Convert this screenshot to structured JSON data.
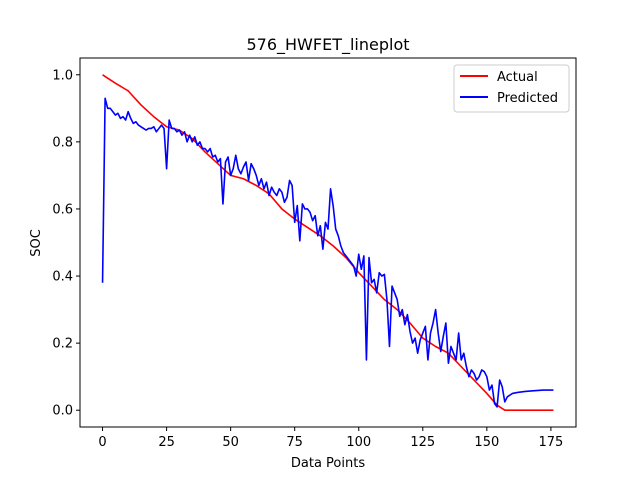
{
  "chart_data": {
    "type": "line",
    "title": "576_HWFET_lineplot",
    "xlabel": "Data Points",
    "ylabel": "SOC",
    "xlim": [
      -8.8,
      184.8
    ],
    "ylim": [
      -0.05,
      1.05
    ],
    "x_ticks": [
      0,
      25,
      50,
      75,
      100,
      125,
      150,
      175
    ],
    "y_ticks": [
      0.0,
      0.2,
      0.4,
      0.6,
      0.8,
      1.0
    ],
    "x_tick_labels": [
      "0",
      "25",
      "50",
      "75",
      "100",
      "125",
      "150",
      "175"
    ],
    "y_tick_labels": [
      "0.0",
      "0.2",
      "0.4",
      "0.6",
      "0.8",
      "1.0"
    ],
    "grid": false,
    "legend_position": "top-right",
    "series": [
      {
        "name": "Actual",
        "color": "#ff0000",
        "points": [
          [
            0,
            1.0
          ],
          [
            5,
            0.975
          ],
          [
            10,
            0.952
          ],
          [
            15,
            0.91
          ],
          [
            20,
            0.875
          ],
          [
            25,
            0.845
          ],
          [
            30,
            0.835
          ],
          [
            35,
            0.81
          ],
          [
            40,
            0.77
          ],
          [
            45,
            0.735
          ],
          [
            50,
            0.7
          ],
          [
            55,
            0.69
          ],
          [
            60,
            0.67
          ],
          [
            65,
            0.645
          ],
          [
            70,
            0.6
          ],
          [
            75,
            0.57
          ],
          [
            80,
            0.545
          ],
          [
            85,
            0.52
          ],
          [
            90,
            0.49
          ],
          [
            95,
            0.455
          ],
          [
            100,
            0.41
          ],
          [
            105,
            0.37
          ],
          [
            110,
            0.33
          ],
          [
            115,
            0.3
          ],
          [
            120,
            0.26
          ],
          [
            125,
            0.215
          ],
          [
            130,
            0.19
          ],
          [
            135,
            0.17
          ],
          [
            140,
            0.13
          ],
          [
            145,
            0.09
          ],
          [
            150,
            0.05
          ],
          [
            154,
            0.015
          ],
          [
            157,
            0.0
          ],
          [
            165,
            0.0
          ],
          [
            176,
            0.0
          ]
        ]
      },
      {
        "name": "Predicted",
        "color": "#0000ff",
        "points": [
          [
            0,
            0.38
          ],
          [
            1,
            0.93
          ],
          [
            2,
            0.9
          ],
          [
            3,
            0.9
          ],
          [
            4,
            0.89
          ],
          [
            5,
            0.88
          ],
          [
            6,
            0.885
          ],
          [
            7,
            0.87
          ],
          [
            8,
            0.875
          ],
          [
            9,
            0.865
          ],
          [
            10,
            0.89
          ],
          [
            11,
            0.87
          ],
          [
            12,
            0.855
          ],
          [
            13,
            0.86
          ],
          [
            14,
            0.85
          ],
          [
            15,
            0.845
          ],
          [
            16,
            0.84
          ],
          [
            17,
            0.835
          ],
          [
            18,
            0.84
          ],
          [
            19,
            0.84
          ],
          [
            20,
            0.845
          ],
          [
            21,
            0.83
          ],
          [
            22,
            0.84
          ],
          [
            23,
            0.85
          ],
          [
            24,
            0.84
          ],
          [
            25,
            0.72
          ],
          [
            26,
            0.865
          ],
          [
            27,
            0.84
          ],
          [
            28,
            0.84
          ],
          [
            29,
            0.83
          ],
          [
            30,
            0.835
          ],
          [
            31,
            0.82
          ],
          [
            32,
            0.83
          ],
          [
            33,
            0.8
          ],
          [
            34,
            0.82
          ],
          [
            35,
            0.8
          ],
          [
            36,
            0.815
          ],
          [
            37,
            0.79
          ],
          [
            38,
            0.8
          ],
          [
            39,
            0.78
          ],
          [
            40,
            0.78
          ],
          [
            41,
            0.77
          ],
          [
            42,
            0.78
          ],
          [
            43,
            0.755
          ],
          [
            44,
            0.76
          ],
          [
            45,
            0.74
          ],
          [
            46,
            0.75
          ],
          [
            47,
            0.615
          ],
          [
            48,
            0.74
          ],
          [
            49,
            0.755
          ],
          [
            50,
            0.7
          ],
          [
            51,
            0.72
          ],
          [
            52,
            0.76
          ],
          [
            53,
            0.72
          ],
          [
            54,
            0.705
          ],
          [
            55,
            0.725
          ],
          [
            56,
            0.74
          ],
          [
            57,
            0.685
          ],
          [
            58,
            0.735
          ],
          [
            59,
            0.72
          ],
          [
            60,
            0.7
          ],
          [
            61,
            0.67
          ],
          [
            62,
            0.69
          ],
          [
            63,
            0.66
          ],
          [
            64,
            0.68
          ],
          [
            65,
            0.64
          ],
          [
            66,
            0.665
          ],
          [
            67,
            0.65
          ],
          [
            68,
            0.64
          ],
          [
            69,
            0.66
          ],
          [
            70,
            0.65
          ],
          [
            71,
            0.62
          ],
          [
            72,
            0.635
          ],
          [
            73,
            0.685
          ],
          [
            74,
            0.67
          ],
          [
            75,
            0.56
          ],
          [
            76,
            0.61
          ],
          [
            77,
            0.505
          ],
          [
            78,
            0.615
          ],
          [
            79,
            0.6
          ],
          [
            80,
            0.6
          ],
          [
            81,
            0.59
          ],
          [
            82,
            0.565
          ],
          [
            83,
            0.58
          ],
          [
            84,
            0.52
          ],
          [
            85,
            0.55
          ],
          [
            86,
            0.48
          ],
          [
            87,
            0.56
          ],
          [
            88,
            0.54
          ],
          [
            89,
            0.66
          ],
          [
            90,
            0.61
          ],
          [
            91,
            0.54
          ],
          [
            92,
            0.52
          ],
          [
            93,
            0.49
          ],
          [
            94,
            0.47
          ],
          [
            95,
            0.46
          ],
          [
            96,
            0.45
          ],
          [
            97,
            0.44
          ],
          [
            98,
            0.43
          ],
          [
            99,
            0.4
          ],
          [
            100,
            0.465
          ],
          [
            101,
            0.42
          ],
          [
            102,
            0.46
          ],
          [
            103,
            0.15
          ],
          [
            104,
            0.455
          ],
          [
            105,
            0.38
          ],
          [
            106,
            0.39
          ],
          [
            107,
            0.35
          ],
          [
            108,
            0.41
          ],
          [
            109,
            0.4
          ],
          [
            110,
            0.405
          ],
          [
            111,
            0.33
          ],
          [
            112,
            0.19
          ],
          [
            113,
            0.37
          ],
          [
            114,
            0.35
          ],
          [
            115,
            0.33
          ],
          [
            116,
            0.28
          ],
          [
            117,
            0.3
          ],
          [
            118,
            0.255
          ],
          [
            119,
            0.285
          ],
          [
            120,
            0.235
          ],
          [
            121,
            0.2
          ],
          [
            122,
            0.215
          ],
          [
            123,
            0.17
          ],
          [
            124,
            0.21
          ],
          [
            125,
            0.23
          ],
          [
            126,
            0.25
          ],
          [
            127,
            0.15
          ],
          [
            128,
            0.23
          ],
          [
            129,
            0.26
          ],
          [
            130,
            0.3
          ],
          [
            131,
            0.23
          ],
          [
            132,
            0.175
          ],
          [
            133,
            0.22
          ],
          [
            134,
            0.26
          ],
          [
            135,
            0.14
          ],
          [
            136,
            0.19
          ],
          [
            137,
            0.17
          ],
          [
            138,
            0.15
          ],
          [
            139,
            0.23
          ],
          [
            140,
            0.15
          ],
          [
            141,
            0.17
          ],
          [
            142,
            0.13
          ],
          [
            143,
            0.1
          ],
          [
            144,
            0.12
          ],
          [
            145,
            0.11
          ],
          [
            146,
            0.09
          ],
          [
            147,
            0.1
          ],
          [
            148,
            0.12
          ],
          [
            149,
            0.115
          ],
          [
            150,
            0.1
          ],
          [
            151,
            0.06
          ],
          [
            152,
            0.075
          ],
          [
            153,
            0.02
          ],
          [
            154,
            0.01
          ],
          [
            155,
            0.09
          ],
          [
            156,
            0.07
          ],
          [
            157,
            0.025
          ],
          [
            158,
            0.04
          ],
          [
            159,
            0.045
          ],
          [
            160,
            0.05
          ],
          [
            162,
            0.053
          ],
          [
            165,
            0.056
          ],
          [
            168,
            0.058
          ],
          [
            172,
            0.06
          ],
          [
            176,
            0.06
          ]
        ]
      }
    ]
  }
}
